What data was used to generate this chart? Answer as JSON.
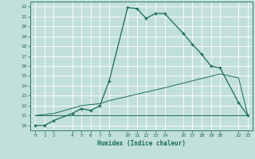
{
  "xlabel": "Humidex (Indice chaleur)",
  "xlim": [
    -0.5,
    23.5
  ],
  "ylim": [
    9.5,
    22.5
  ],
  "xticks": [
    0,
    1,
    2,
    4,
    5,
    6,
    7,
    8,
    10,
    11,
    12,
    13,
    14,
    16,
    17,
    18,
    19,
    20,
    22,
    23
  ],
  "yticks": [
    10,
    11,
    12,
    13,
    14,
    15,
    16,
    17,
    18,
    19,
    20,
    21,
    22
  ],
  "bg_color": "#c2e0da",
  "grid_color": "#ffffff",
  "line_color": "#1a6b5a",
  "line1_x": [
    0,
    1,
    2,
    4,
    5,
    6,
    7,
    8,
    10,
    11,
    12,
    13,
    14,
    16,
    17,
    18,
    19,
    20,
    22,
    23
  ],
  "line1_y": [
    10,
    10,
    10.5,
    11.2,
    11.7,
    11.5,
    12.0,
    14.5,
    21.9,
    21.8,
    20.8,
    21.3,
    21.3,
    19.3,
    18.2,
    17.2,
    16.0,
    15.8,
    12.3,
    11.0
  ],
  "line2_x": [
    0,
    2,
    5,
    20,
    23
  ],
  "line2_y": [
    11.0,
    11.0,
    11.0,
    11.0,
    11.0
  ],
  "line3_x": [
    0,
    2,
    5,
    7,
    8,
    14,
    20,
    22,
    23
  ],
  "line3_y": [
    11.0,
    11.2,
    12.0,
    12.2,
    12.5,
    13.8,
    15.2,
    14.8,
    11.0
  ]
}
